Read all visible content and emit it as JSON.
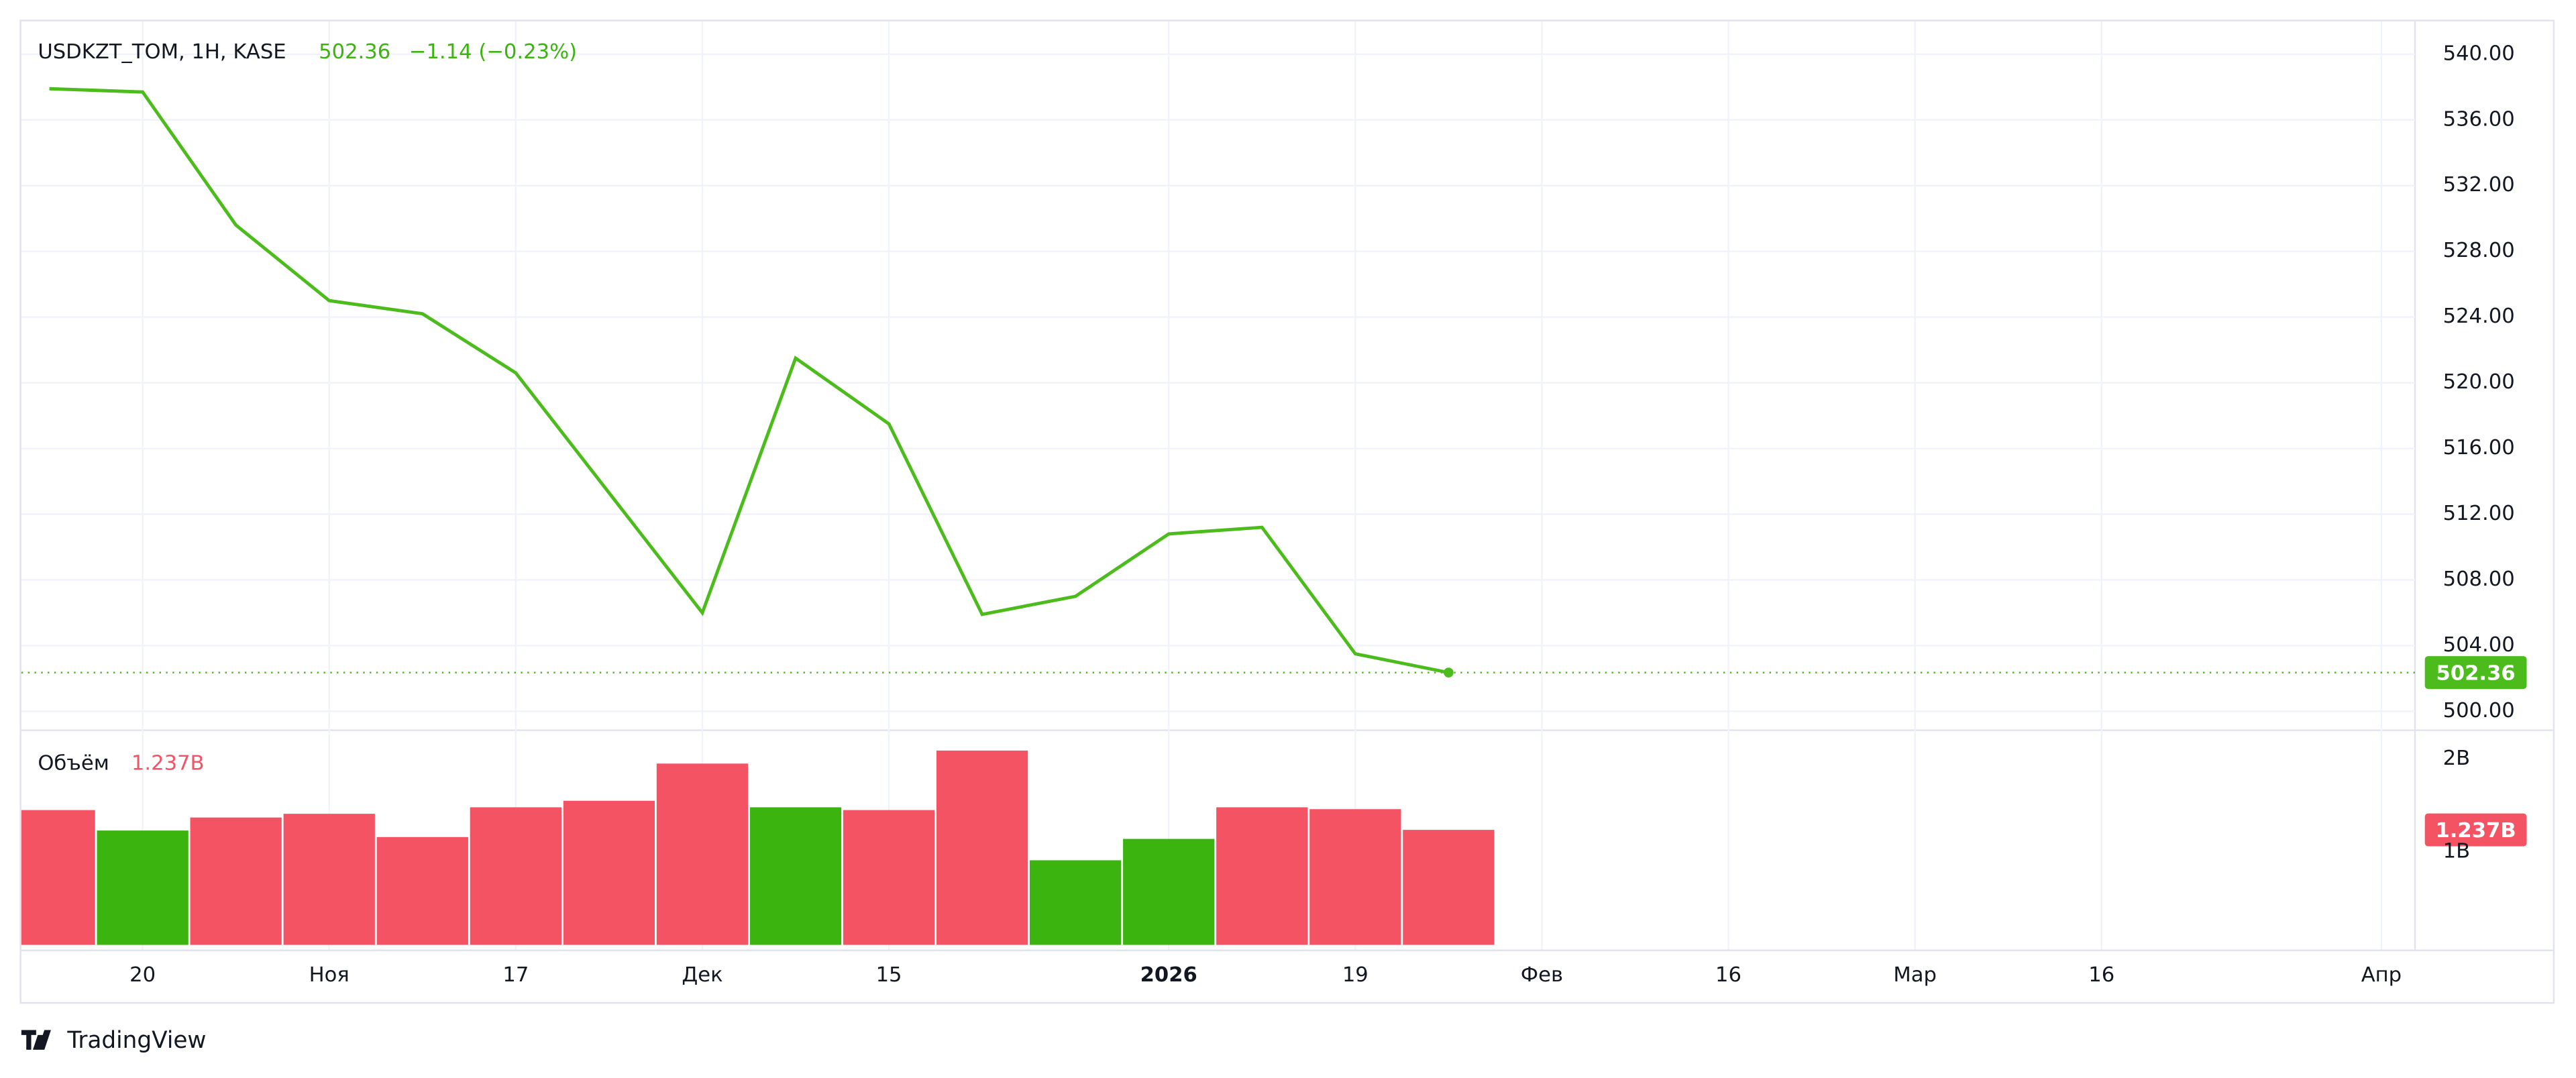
{
  "chart_data": [
    {
      "type": "line",
      "title": "USDKZT_TOM, 1H, KASE",
      "price_label": "502.36",
      "change": "−1.14 (−0.23%)",
      "x": [
        0,
        1,
        2,
        3,
        4,
        5,
        6,
        7,
        8,
        9,
        10,
        11,
        12,
        13,
        14,
        15
      ],
      "series": [
        {
          "color": "#4cbc1c",
          "values": [
            537.9,
            537.7,
            529.6,
            525.0,
            524.2,
            520.6,
            513.3,
            506.0,
            521.5,
            517.5,
            505.9,
            507.0,
            510.8,
            511.2,
            503.5,
            502.36
          ]
        }
      ],
      "xlim": [
        -0.3,
        25.36
      ],
      "ylim": [
        498.9,
        542.0
      ],
      "yticks": [
        {
          "value": 500,
          "label": "500.00"
        },
        {
          "value": 504,
          "label": "504.00"
        },
        {
          "value": 508,
          "label": "508.00"
        },
        {
          "value": 512,
          "label": "512.00"
        },
        {
          "value": 516,
          "label": "516.00"
        },
        {
          "value": 520,
          "label": "520.00"
        },
        {
          "value": 524,
          "label": "524.00"
        },
        {
          "value": 528,
          "label": "528.00"
        },
        {
          "value": 532,
          "label": "532.00"
        },
        {
          "value": 536,
          "label": "536.00"
        },
        {
          "value": 540,
          "label": "540.00"
        }
      ],
      "grid": true
    },
    {
      "type": "bar",
      "title": "Объём",
      "volume_label": "1.237B",
      "x": [
        0,
        1,
        2,
        3,
        4,
        5,
        6,
        7,
        8,
        9,
        10,
        11,
        12,
        13,
        14,
        15
      ],
      "values": [
        1.45,
        1.23,
        1.37,
        1.41,
        1.16,
        1.48,
        1.55,
        1.95,
        1.48,
        1.45,
        2.09,
        0.91,
        1.14,
        1.48,
        1.46,
        1.237
      ],
      "colors": [
        "#f45364",
        "#3bb40f",
        "#f45364",
        "#f45364",
        "#f45364",
        "#f45364",
        "#f45364",
        "#f45364",
        "#3bb40f",
        "#f45364",
        "#f45364",
        "#3bb40f",
        "#3bb40f",
        "#f45364",
        "#f45364",
        "#f45364"
      ],
      "xlim": [
        -0.3,
        25.36
      ],
      "ylim": [
        -0.05,
        2.3
      ],
      "yticks": [
        {
          "value": 1,
          "label": "1B"
        },
        {
          "value": 2,
          "label": "2B"
        }
      ],
      "xticks": [
        {
          "value": 1,
          "label": "20"
        },
        {
          "value": 3,
          "label": "Ноя"
        },
        {
          "value": 5,
          "label": "17"
        },
        {
          "value": 7,
          "label": "Дек"
        },
        {
          "value": 9,
          "label": "15"
        },
        {
          "value": 12,
          "label": "2026"
        },
        {
          "value": 14,
          "label": "19"
        },
        {
          "value": 16,
          "label": "Фев"
        },
        {
          "value": 18,
          "label": "16"
        },
        {
          "value": 20,
          "label": "Мар"
        },
        {
          "value": 22,
          "label": "16"
        },
        {
          "value": 25,
          "label": "Апр"
        }
      ],
      "grid": true
    },
    {
      "type": "watermark",
      "brand": "TradingView"
    }
  ]
}
